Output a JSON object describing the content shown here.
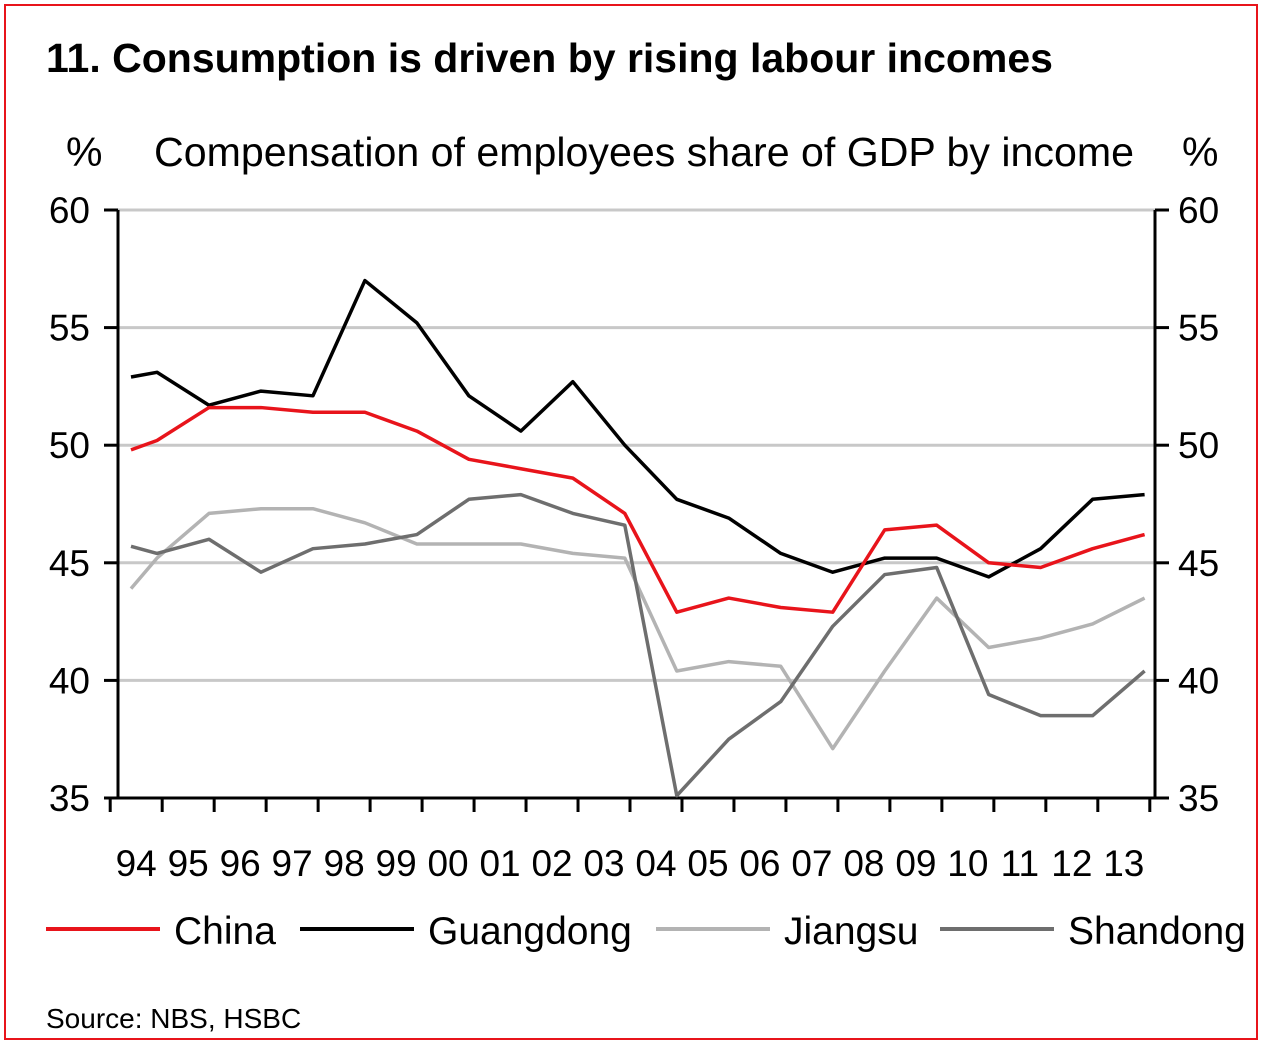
{
  "chart_data": {
    "type": "line",
    "title": "11. Consumption is driven by rising labour incomes",
    "subtitle": "Compensation of employees share of GDP by income",
    "y_unit_left": "%",
    "y_unit_right": "%",
    "ylim": [
      35,
      60
    ],
    "yticks": [
      35,
      40,
      45,
      50,
      55,
      60
    ],
    "grid": true,
    "x_tick_labels": [
      "94",
      "95",
      "96",
      "97",
      "98",
      "99",
      "00",
      "01",
      "02",
      "03",
      "04",
      "05",
      "06",
      "07",
      "08",
      "09",
      "10",
      "11",
      "12",
      "13"
    ],
    "legend_position": "bottom",
    "source": "Source: NBS, HSBC",
    "series": [
      {
        "name": "China",
        "color": "#e8141b",
        "values": [
          49.8,
          50.2,
          51.6,
          51.6,
          51.4,
          51.4,
          50.6,
          49.4,
          49.0,
          48.6,
          47.1,
          42.9,
          43.5,
          43.1,
          42.9,
          46.4,
          46.6,
          45.0,
          44.8,
          45.6,
          46.2
        ],
        "x": [
          93.9,
          94.4,
          95.4,
          96.4,
          97.4,
          98.4,
          99.4,
          100.4,
          101.4,
          102.4,
          103.4,
          104.4,
          105.4,
          106.4,
          107.4,
          108.4,
          109.4,
          110.4,
          111.4,
          112.4,
          113.4
        ]
      },
      {
        "name": "Guangdong",
        "color": "#000000",
        "values": [
          52.9,
          53.1,
          51.7,
          52.3,
          52.1,
          57.0,
          55.2,
          52.1,
          50.6,
          52.7,
          50.0,
          47.7,
          46.9,
          45.4,
          44.6,
          45.2,
          45.2,
          44.4,
          45.6,
          47.7,
          47.9
        ],
        "x": [
          93.9,
          94.4,
          95.4,
          96.4,
          97.4,
          98.4,
          99.4,
          100.4,
          101.4,
          102.4,
          103.4,
          104.4,
          105.4,
          106.4,
          107.4,
          108.4,
          109.4,
          110.4,
          111.4,
          112.4,
          113.4
        ]
      },
      {
        "name": "Jiangsu",
        "color": "#b3b3b3",
        "values": [
          43.9,
          45.2,
          47.1,
          47.3,
          47.3,
          46.7,
          45.8,
          45.8,
          45.8,
          45.4,
          45.2,
          40.4,
          40.8,
          40.6,
          37.1,
          40.4,
          43.5,
          41.4,
          41.8,
          42.4,
          43.5
        ],
        "x": [
          93.9,
          94.4,
          95.4,
          96.4,
          97.4,
          98.4,
          99.4,
          100.4,
          101.4,
          102.4,
          103.4,
          104.4,
          105.4,
          106.4,
          107.4,
          108.4,
          109.4,
          110.4,
          111.4,
          112.4,
          113.4
        ]
      },
      {
        "name": "Shandong",
        "color": "#6e6e6e",
        "values": [
          45.7,
          45.4,
          46.0,
          44.6,
          45.6,
          45.8,
          46.2,
          47.7,
          47.9,
          47.1,
          46.6,
          35.1,
          37.5,
          39.1,
          42.3,
          44.5,
          44.8,
          39.4,
          38.5,
          38.5,
          40.4
        ],
        "x": [
          93.9,
          94.4,
          95.4,
          96.4,
          97.4,
          98.4,
          99.4,
          100.4,
          101.4,
          102.4,
          103.4,
          104.4,
          105.4,
          106.4,
          107.4,
          108.4,
          109.4,
          110.4,
          111.4,
          112.4,
          113.4
        ]
      }
    ]
  }
}
